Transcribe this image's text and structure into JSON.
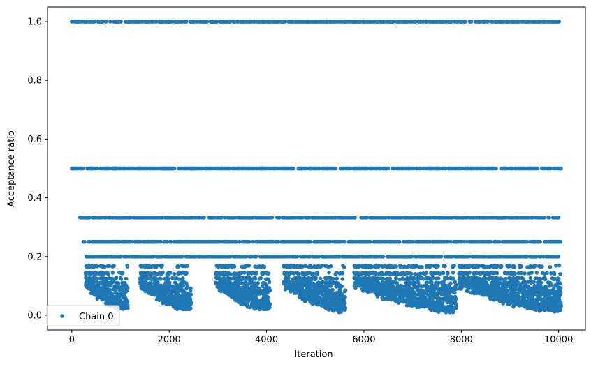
{
  "chart_data": {
    "type": "scatter",
    "title": "",
    "xlabel": "Iteration",
    "ylabel": "Acceptance ratio",
    "xlim": [
      -500,
      10550
    ],
    "ylim": [
      -0.05,
      1.05
    ],
    "xticks": [
      0,
      2000,
      4000,
      6000,
      8000,
      10000
    ],
    "xtick_labels": [
      "0",
      "2000",
      "4000",
      "6000",
      "8000",
      "10000"
    ],
    "yticks": [
      0.0,
      0.2,
      0.4,
      0.6,
      0.8,
      1.0
    ],
    "ytick_labels": [
      "0.0",
      "0.2",
      "0.4",
      "0.6",
      "0.8",
      "1.0"
    ],
    "grid": false,
    "legend_position": "lower-left",
    "series": [
      {
        "name": "Chain 0",
        "color": "#1f77b4",
        "marker": "circle",
        "levels": [
          {
            "y": 1.0,
            "x_range": [
              0,
              10050
            ]
          },
          {
            "y": 0.5,
            "x_range": [
              0,
              10050
            ]
          },
          {
            "y": 0.333,
            "x_range": [
              150,
              10000
            ]
          },
          {
            "y": 0.25,
            "x_range": [
              200,
              10050
            ]
          },
          {
            "y": 0.2,
            "x_range": [
              280,
              10000
            ]
          }
        ],
        "decay_segments": [
          {
            "x_range": [
              280,
              1150
            ],
            "y_min": 0.02
          },
          {
            "x_range": [
              1400,
              2450
            ],
            "y_min": 0.02
          },
          {
            "x_range": [
              2950,
              4070
            ],
            "y_min": 0.02
          },
          {
            "x_range": [
              4350,
              5620
            ],
            "y_min": 0.005
          },
          {
            "x_range": [
              5800,
              7900
            ],
            "y_min": 0.0
          },
          {
            "x_range": [
              7950,
              10050
            ],
            "y_min": 0.0
          }
        ]
      }
    ]
  }
}
